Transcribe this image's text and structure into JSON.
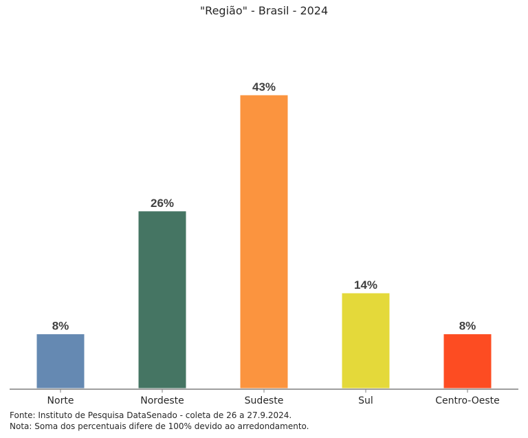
{
  "chart_data": {
    "type": "bar",
    "title": "\"Região\" - Brasil - 2024",
    "categories": [
      "Norte",
      "Nordeste",
      "Sudeste",
      "Sul",
      "Centro-Oeste"
    ],
    "values": [
      8,
      26,
      43,
      14,
      8
    ],
    "data_labels": [
      "8%",
      "26%",
      "43%",
      "14%",
      "8%"
    ],
    "colors": [
      "#6589b2",
      "#457563",
      "#fb943f",
      "#e4d93a",
      "#fd4c22"
    ],
    "ylim": [
      0,
      48
    ],
    "grid": false,
    "legend": "none"
  },
  "footer": {
    "source": "Fonte: Instituto de Pesquisa DataSenado - coleta de 26 a 27.9.2024.",
    "note": "Nota: Soma dos percentuais difere de 100% devido ao arredondamento."
  }
}
